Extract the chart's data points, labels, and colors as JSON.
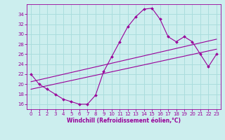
{
  "xlabel": "Windchill (Refroidissement éolien,°C)",
  "x": [
    0,
    1,
    2,
    3,
    4,
    5,
    6,
    7,
    8,
    9,
    10,
    11,
    12,
    13,
    14,
    15,
    16,
    17,
    18,
    19,
    20,
    21,
    22,
    23
  ],
  "y_curve": [
    22,
    20,
    19,
    18,
    17,
    16.5,
    16,
    16,
    17.8,
    22.5,
    25.5,
    28.5,
    31.5,
    33.5,
    35,
    35.2,
    33,
    29.5,
    28.5,
    29.5,
    28.5,
    26,
    23.5,
    26
  ],
  "line_color": "#990099",
  "bg_color": "#cceeee",
  "grid_color": "#aadddd",
  "ylim": [
    15,
    36
  ],
  "xlim": [
    -0.5,
    23.5
  ],
  "yticks": [
    16,
    18,
    20,
    22,
    24,
    26,
    28,
    30,
    32,
    34
  ],
  "xticks": [
    0,
    1,
    2,
    3,
    4,
    5,
    6,
    7,
    8,
    9,
    10,
    11,
    12,
    13,
    14,
    15,
    16,
    17,
    18,
    19,
    20,
    21,
    22,
    23
  ],
  "reg_line1_x": [
    0,
    23
  ],
  "reg_line1_y": [
    19.0,
    27.0
  ],
  "reg_line2_x": [
    0,
    23
  ],
  "reg_line2_y": [
    20.5,
    29.0
  ]
}
